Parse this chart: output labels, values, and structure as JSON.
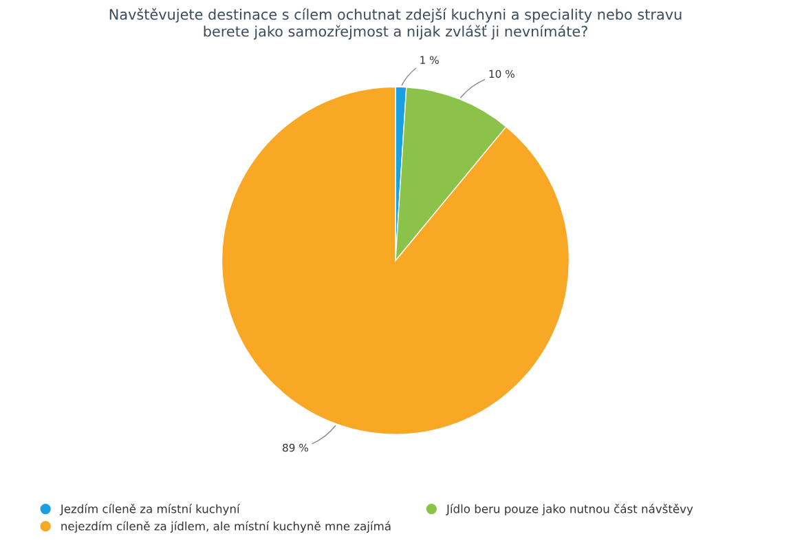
{
  "chart_data": {
    "type": "pie",
    "title": "Navštěvujete destinace s cílem ochutnat zdejší kuchyni a speciality nebo stravu\nberete jako samozřejmost a nijak zvlášť ji nevnímáte?",
    "categories": [
      "Jezdím cíleně za místní kuchyní",
      "Jídlo beru pouze jako nutnou část návštěvy",
      "nejezdím cíleně za jídlem, ale místní kuchyně mne zajímá"
    ],
    "values": [
      1,
      10,
      89
    ],
    "value_labels": [
      "1 %",
      "10 %",
      "89 %"
    ],
    "colors": [
      "#1a9fe0",
      "#8bc34a",
      "#f9a825"
    ],
    "legend": "bottom left"
  }
}
